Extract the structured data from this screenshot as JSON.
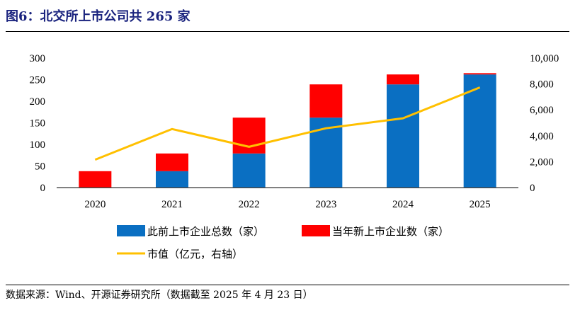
{
  "title": "图6：北交所上市公司共 265 家",
  "source": "数据来源：Wind、开源证券研究所（数据截至 2025 年 4 月 23 日）",
  "colors": {
    "blue": "#0a6fc2",
    "red": "#ff0000",
    "yellow": "#ffc000",
    "title": "#1a237e"
  },
  "chart_data": {
    "type": "bar",
    "stacked": true,
    "categories": [
      "2020",
      "2021",
      "2022",
      "2023",
      "2024",
      "2025"
    ],
    "series": [
      {
        "name": "此前上市企业总数（家）",
        "type": "bar",
        "axis": "left",
        "color": "#0a6fc2",
        "values": [
          0,
          38,
          79,
          162,
          239,
          262
        ]
      },
      {
        "name": "当年新上市企业数（家）",
        "type": "bar",
        "axis": "left",
        "color": "#ff0000",
        "values": [
          38,
          41,
          83,
          77,
          23,
          3
        ]
      },
      {
        "name": "市值（亿元，右轴）",
        "type": "line",
        "axis": "right",
        "color": "#ffc000",
        "values": [
          2150,
          4520,
          3150,
          4580,
          5350,
          7730
        ]
      }
    ],
    "yleft": {
      "min": 0,
      "max": 300,
      "ticks": [
        "0",
        "50",
        "100",
        "150",
        "200",
        "250",
        "300"
      ]
    },
    "yright": {
      "min": 0,
      "max": 10000,
      "ticks": [
        "0",
        "2,000",
        "4,000",
        "6,000",
        "8,000",
        "10,000"
      ]
    },
    "grid": false,
    "legend_position": "bottom"
  }
}
